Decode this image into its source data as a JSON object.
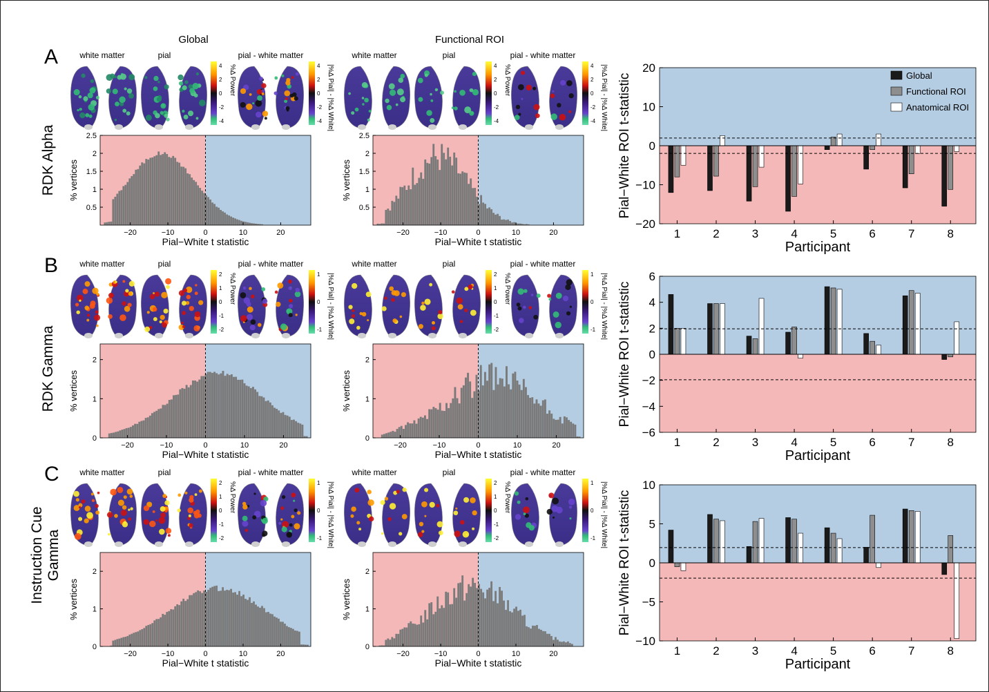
{
  "column_headers": {
    "global": "Global",
    "functional": "Functional ROI"
  },
  "brain_labels": {
    "white": "white matter",
    "pial": "pial",
    "diff": "pial - white matter"
  },
  "colorbar_labels": {
    "power": "%Δ Power",
    "diff": "|%Δ Pial| - |%Δ White|"
  },
  "rows": [
    {
      "letter": "A",
      "name": "RDK Alpha",
      "power_ticks": [
        "4",
        "2",
        "0",
        "-2",
        "-4"
      ],
      "diff_ticks": [
        "4",
        "2",
        "0",
        "-2",
        "-4"
      ],
      "func_power_ticks": [
        "4",
        "2",
        "0",
        "-2",
        "-4"
      ],
      "func_diff_ticks": [
        "4",
        "2",
        "0",
        "-2",
        "-4"
      ]
    },
    {
      "letter": "B",
      "name": "RDK Gamma",
      "power_ticks": [
        "2",
        "1",
        "0",
        "-1",
        "-2"
      ],
      "diff_ticks": [
        "1",
        "0",
        "-1"
      ],
      "func_power_ticks": [
        "2",
        "1",
        "0",
        "-1",
        "-2"
      ],
      "func_diff_ticks": [
        "1",
        "0",
        "-1"
      ]
    },
    {
      "letter": "C",
      "name": "Instruction Cue Gamma",
      "power_ticks": [
        "2",
        "1",
        "0",
        "-1",
        "-2"
      ],
      "diff_ticks": [
        "1",
        "0",
        "-1"
      ],
      "func_power_ticks": [
        "2",
        "1",
        "0",
        "-1",
        "-2"
      ],
      "func_diff_ticks": [
        "1",
        "0",
        "-1"
      ]
    }
  ],
  "chart_data": [
    {
      "type": "bar",
      "panel": "A-global",
      "xlabel": "Pial−White t statistic",
      "ylabel": "% vertices",
      "xlim": [
        -28,
        28
      ],
      "ylim": [
        0,
        2.5
      ],
      "yticks": [
        0.5,
        1,
        1.5,
        2,
        2.5
      ],
      "ytick_labels": [
        "0.5",
        "1",
        "1.5",
        "2",
        "2.5"
      ],
      "xticks": [
        -20,
        -10,
        0,
        10,
        20
      ],
      "shape": "gauss",
      "params": {
        "mu": -12,
        "sig": 9,
        "amp": 2.0,
        "noise": 0.03
      }
    },
    {
      "type": "bar",
      "panel": "A-functional",
      "xlabel": "Pial−White t statistic",
      "ylabel": "% vertices",
      "xlim": [
        -28,
        28
      ],
      "ylim": [
        0,
        2.5
      ],
      "yticks": [
        0.5,
        1,
        1.5,
        2,
        2.5
      ],
      "ytick_labels": [
        "0.5",
        "1",
        "1.5",
        "2",
        "2.5"
      ],
      "xticks": [
        -20,
        -10,
        0,
        10,
        20
      ],
      "shape": "gauss",
      "params": {
        "mu": -11,
        "sig": 8,
        "amp": 1.9,
        "noise": 0.25
      }
    },
    {
      "type": "bar",
      "panel": "A-participants",
      "xlabel": "Participant",
      "ylabel": "Pial−White ROI t-statistic",
      "categories": [
        "1",
        "2",
        "3",
        "4",
        "5",
        "6",
        "7",
        "8"
      ],
      "ylim": [
        -20,
        20
      ],
      "yticks": [
        -20,
        -10,
        0,
        10,
        20
      ],
      "threshold": 1.96,
      "series": [
        {
          "name": "Global",
          "values": [
            -12,
            -11.5,
            -14.2,
            -16.8,
            -1,
            -6,
            -10.8,
            -15.5
          ]
        },
        {
          "name": "Functional ROI",
          "values": [
            -8,
            -7.8,
            -10.5,
            -13,
            2.2,
            -1,
            -7.2,
            -11.2
          ]
        },
        {
          "name": "Anatomical ROI",
          "values": [
            -5,
            2.6,
            -5.5,
            -9.8,
            3,
            3,
            -2,
            -1.5
          ]
        }
      ]
    },
    {
      "type": "bar",
      "panel": "B-global",
      "xlabel": "Pial−White t statistic",
      "ylabel": "% vertices",
      "xlim": [
        -27,
        27
      ],
      "ylim": [
        0,
        2.4
      ],
      "yticks": [
        0,
        1,
        2
      ],
      "ytick_labels": [
        "0",
        "1",
        "2"
      ],
      "xticks": [
        -20,
        -10,
        0,
        10,
        20
      ],
      "shape": "gauss",
      "params": {
        "mu": 3,
        "sig": 12,
        "amp": 1.65,
        "noise": 0.05
      }
    },
    {
      "type": "bar",
      "panel": "B-functional",
      "xlabel": "Pial−White t statistic",
      "ylabel": "% vertices",
      "xlim": [
        -27,
        27
      ],
      "ylim": [
        0,
        2.4
      ],
      "yticks": [
        0,
        1,
        2
      ],
      "ytick_labels": [
        "0",
        "1",
        "2"
      ],
      "xticks": [
        -20,
        -10,
        0,
        10,
        20
      ],
      "shape": "gauss",
      "params": {
        "mu": 3,
        "sig": 12,
        "amp": 1.5,
        "noise": 0.3
      }
    },
    {
      "type": "bar",
      "panel": "B-participants",
      "xlabel": "Participant",
      "ylabel": "Pial−White ROI t-statistic",
      "categories": [
        "1",
        "2",
        "3",
        "4",
        "5",
        "6",
        "7",
        "8"
      ],
      "ylim": [
        -6,
        6
      ],
      "yticks": [
        -6,
        -4,
        -2,
        0,
        2,
        4,
        6
      ],
      "threshold": 1.96,
      "series": [
        {
          "name": "Global",
          "values": [
            4.6,
            3.9,
            1.4,
            1.7,
            5.2,
            1.6,
            4.5,
            -0.4
          ]
        },
        {
          "name": "Functional ROI",
          "values": [
            2,
            3.9,
            1.2,
            2.1,
            5.1,
            1,
            4.9,
            -0.2
          ]
        },
        {
          "name": "Anatomical ROI",
          "values": [
            2,
            3.9,
            4.3,
            -0.3,
            5,
            0.7,
            4.7,
            2.5
          ]
        }
      ]
    },
    {
      "type": "bar",
      "panel": "C-global",
      "xlabel": "Pial−White t statistic",
      "ylabel": "% vertices",
      "xlim": [
        -28,
        28
      ],
      "ylim": [
        0,
        2.5
      ],
      "yticks": [
        0,
        1,
        2
      ],
      "ytick_labels": [
        "0",
        "1",
        "2"
      ],
      "xticks": [
        -20,
        -10,
        0,
        10,
        20
      ],
      "shape": "gauss",
      "params": {
        "mu": 3,
        "sig": 13,
        "amp": 1.55,
        "noise": 0.05
      }
    },
    {
      "type": "bar",
      "panel": "C-functional",
      "xlabel": "Pial−White t statistic",
      "ylabel": "% vertices",
      "xlim": [
        -28,
        28
      ],
      "ylim": [
        0,
        2.5
      ],
      "yticks": [
        0,
        1,
        2
      ],
      "ytick_labels": [
        "0",
        "1",
        "2"
      ],
      "xticks": [
        -20,
        -10,
        0,
        10,
        20
      ],
      "shape": "gauss",
      "params": {
        "mu": -2,
        "sig": 11,
        "amp": 1.6,
        "noise": 0.25
      }
    },
    {
      "type": "bar",
      "panel": "C-participants",
      "xlabel": "Participant",
      "ylabel": "Pial−White ROI t-statistic",
      "categories": [
        "1",
        "2",
        "3",
        "4",
        "5",
        "6",
        "7",
        "8"
      ],
      "ylim": [
        -10,
        10
      ],
      "yticks": [
        -10,
        -5,
        0,
        5,
        10
      ],
      "threshold": 1.96,
      "series": [
        {
          "name": "Global",
          "values": [
            4.2,
            6.2,
            2.1,
            5.8,
            4.5,
            2,
            6.9,
            -1.5
          ]
        },
        {
          "name": "Functional ROI",
          "values": [
            -0.5,
            5.6,
            5.3,
            5.6,
            3.8,
            6.1,
            6.7,
            3.5
          ]
        },
        {
          "name": "Anatomical ROI",
          "values": [
            -1,
            5.4,
            5.7,
            3.8,
            3.1,
            -0.6,
            6.6,
            -9.7
          ]
        }
      ]
    }
  ],
  "colors": {
    "pos_bg": "#b5cde3",
    "neg_bg": "#f4b8b8",
    "hist": "#7a7a7a",
    "global": "#1a1a1a",
    "functional": "#8e8e8e",
    "anatomical": "#ffffff"
  }
}
